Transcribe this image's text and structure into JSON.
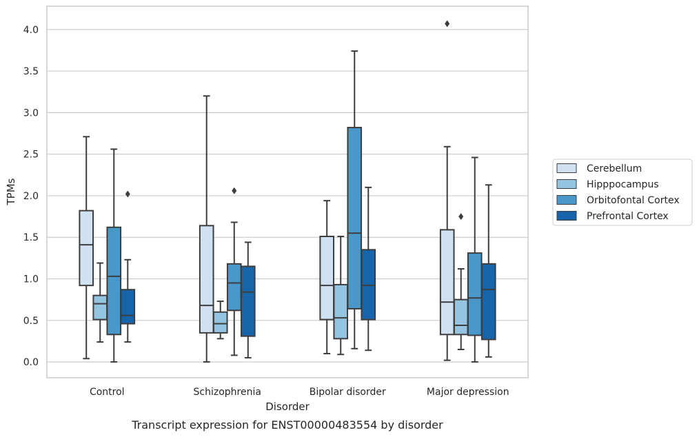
{
  "caption": "Transcript expression for ENST00000483554 by disorder",
  "chart_data": {
    "type": "box",
    "xlabel": "Disorder",
    "ylabel": "TPMs",
    "ylim": [
      -0.19,
      4.28
    ],
    "yticks": [
      "0.0",
      "0.5",
      "1.0",
      "1.5",
      "2.0",
      "2.5",
      "3.0",
      "3.5",
      "4.0"
    ],
    "grid": "horizontal",
    "legend_position": "right",
    "categories": [
      "Control",
      "Schizophrenia",
      "Bipolar disorder",
      "Major depression"
    ],
    "series": [
      {
        "name": "Cerebellum",
        "color": "#d0e1f2",
        "boxes": [
          {
            "whislo": 0.04,
            "q1": 0.92,
            "med": 1.41,
            "q3": 1.82,
            "whishi": 2.71,
            "fliers": []
          },
          {
            "whislo": 0.0,
            "q1": 0.35,
            "med": 0.68,
            "q3": 1.64,
            "whishi": 3.2,
            "fliers": []
          },
          {
            "whislo": 0.1,
            "q1": 0.51,
            "med": 0.92,
            "q3": 1.51,
            "whishi": 1.94,
            "fliers": []
          },
          {
            "whislo": 0.02,
            "q1": 0.33,
            "med": 0.72,
            "q3": 1.59,
            "whishi": 2.59,
            "fliers": [
              4.07
            ]
          }
        ]
      },
      {
        "name": "Hipppocampus",
        "color": "#94c4df",
        "boxes": [
          {
            "whislo": 0.24,
            "q1": 0.51,
            "med": 0.7,
            "q3": 0.8,
            "whishi": 1.19,
            "fliers": []
          },
          {
            "whislo": 0.28,
            "q1": 0.35,
            "med": 0.46,
            "q3": 0.6,
            "whishi": 0.73,
            "fliers": []
          },
          {
            "whislo": 0.09,
            "q1": 0.28,
            "med": 0.53,
            "q3": 0.93,
            "whishi": 1.51,
            "fliers": []
          },
          {
            "whislo": 0.15,
            "q1": 0.33,
            "med": 0.44,
            "q3": 0.75,
            "whishi": 1.12,
            "fliers": [
              1.75
            ]
          }
        ]
      },
      {
        "name": "Orbitofontal Cortex",
        "color": "#4a98c9",
        "boxes": [
          {
            "whislo": 0.0,
            "q1": 0.33,
            "med": 1.03,
            "q3": 1.62,
            "whishi": 2.56,
            "fliers": []
          },
          {
            "whislo": 0.08,
            "q1": 0.62,
            "med": 0.95,
            "q3": 1.18,
            "whishi": 1.68,
            "fliers": [
              2.06
            ]
          },
          {
            "whislo": 0.16,
            "q1": 0.64,
            "med": 1.55,
            "q3": 2.82,
            "whishi": 3.74,
            "fliers": []
          },
          {
            "whislo": 0.0,
            "q1": 0.32,
            "med": 0.77,
            "q3": 1.31,
            "whishi": 2.46,
            "fliers": []
          }
        ]
      },
      {
        "name": "Prefrontal Cortex",
        "color": "#1764ab",
        "boxes": [
          {
            "whislo": 0.24,
            "q1": 0.46,
            "med": 0.56,
            "q3": 0.87,
            "whishi": 1.23,
            "fliers": [
              2.02
            ]
          },
          {
            "whislo": 0.05,
            "q1": 0.31,
            "med": 0.84,
            "q3": 1.15,
            "whishi": 1.44,
            "fliers": []
          },
          {
            "whislo": 0.14,
            "q1": 0.51,
            "med": 0.92,
            "q3": 1.35,
            "whishi": 2.1,
            "fliers": []
          },
          {
            "whislo": 0.06,
            "q1": 0.27,
            "med": 0.87,
            "q3": 1.18,
            "whishi": 2.13,
            "fliers": []
          }
        ]
      }
    ]
  }
}
